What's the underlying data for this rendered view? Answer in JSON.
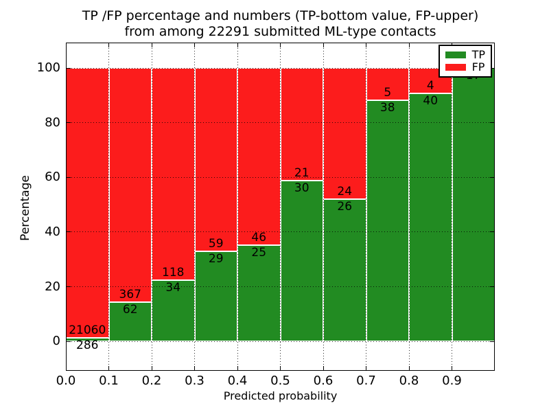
{
  "figure": {
    "title_line1": "TP /FP percentage and numbers (TP-bottom value, FP-upper)",
    "title_line2": "from among 22291 submitted ML-type contacts"
  },
  "chart_data": {
    "type": "bar",
    "subtype": "stacked-percentage-histogram",
    "title": "TP /FP percentage and numbers (TP-bottom value, FP-upper) from among 22291 submitted ML-type contacts",
    "xlabel": "Predicted probability",
    "ylabel": "Percentage",
    "total_contacts": 22291,
    "xlim": [
      0,
      1
    ],
    "ylim": [
      -10.8,
      109.4
    ],
    "x_tick_values": [
      0,
      0.1,
      0.2,
      0.3,
      0.4,
      0.5,
      0.6,
      0.7,
      0.8,
      0.9
    ],
    "x_tick_labels": [
      "0.0",
      "0.1",
      "0.2",
      "0.3",
      "0.4",
      "0.5",
      "0.6",
      "0.7",
      "0.8",
      "0.9"
    ],
    "y_tick_values": [
      0,
      20,
      40,
      60,
      80,
      100
    ],
    "y_tick_labels": [
      "0",
      "20",
      "40",
      "60",
      "80",
      "100"
    ],
    "grid": true,
    "bin_width": 0.1,
    "categories": [
      "0.0-0.1",
      "0.1-0.2",
      "0.2-0.3",
      "0.3-0.4",
      "0.4-0.5",
      "0.5-0.6",
      "0.6-0.7",
      "0.7-0.8",
      "0.8-0.9",
      "0.9-1.0"
    ],
    "series": [
      {
        "name": "TP",
        "color": "#228b22",
        "counts": [
          286,
          62,
          34,
          29,
          25,
          30,
          26,
          38,
          40,
          17
        ]
      },
      {
        "name": "FP",
        "color": "#fc1c1c",
        "counts": [
          21060,
          367,
          118,
          59,
          46,
          21,
          24,
          5,
          4,
          0
        ]
      }
    ],
    "legend_position": "upper right",
    "legend": [
      {
        "label": "TP",
        "color": "#228b22"
      },
      {
        "label": "FP",
        "color": "#fc1c1c"
      }
    ]
  }
}
